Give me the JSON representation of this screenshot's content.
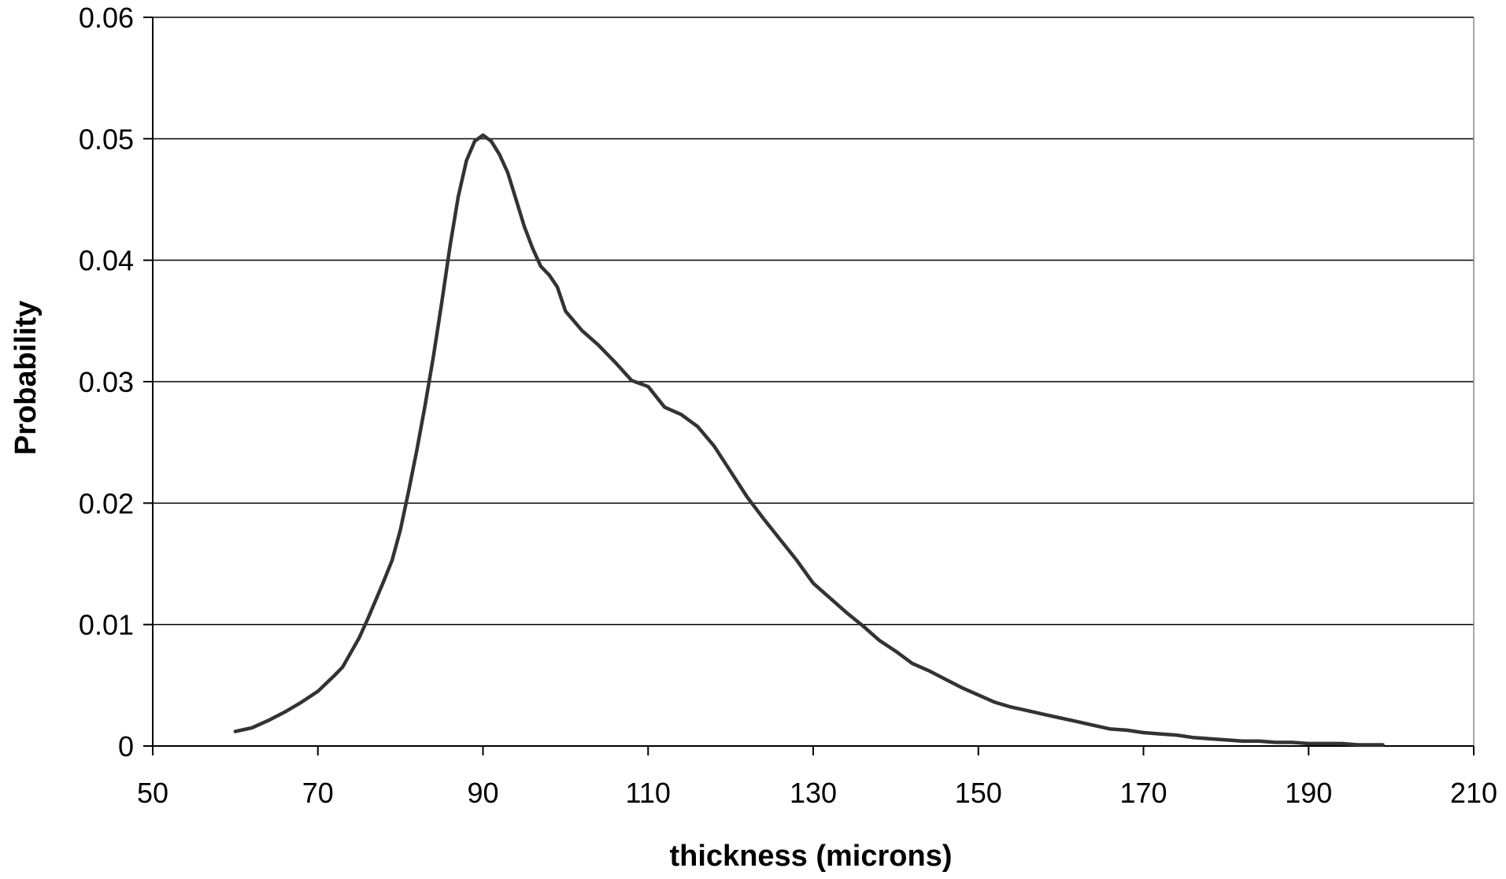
{
  "chart_data": {
    "type": "line",
    "title": "",
    "xlabel": "thickness (microns)",
    "ylabel": "Probability",
    "xlim": [
      50,
      210
    ],
    "ylim": [
      0,
      0.06
    ],
    "x_ticks": [
      50,
      70,
      90,
      110,
      130,
      150,
      170,
      190,
      210
    ],
    "y_ticks": [
      0,
      0.01,
      0.02,
      0.03,
      0.04,
      0.05,
      0.06
    ],
    "x_tick_labels": [
      "50",
      "70",
      "90",
      "110",
      "130",
      "150",
      "170",
      "190",
      "210"
    ],
    "y_tick_labels": [
      "0",
      "0.01",
      "0.02",
      "0.03",
      "0.04",
      "0.05",
      "0.06"
    ],
    "grid": "horizontal",
    "legend": "none",
    "line_color": "#333333",
    "series": [
      {
        "x": [
          60,
          62,
          64,
          66,
          68,
          70,
          72,
          73,
          74,
          75,
          76,
          77,
          78,
          79,
          80,
          81,
          82,
          83,
          84,
          85,
          86,
          87,
          88,
          89,
          90,
          91,
          92,
          93,
          94,
          95,
          96,
          97,
          98,
          99,
          100,
          102,
          104,
          106,
          108,
          110,
          112,
          114,
          116,
          118,
          120,
          122,
          124,
          126,
          128,
          130,
          132,
          134,
          136,
          138,
          140,
          142,
          144,
          146,
          148,
          150,
          152,
          154,
          156,
          158,
          160,
          162,
          164,
          166,
          168,
          170,
          172,
          174,
          176,
          178,
          180,
          182,
          184,
          186,
          188,
          190,
          192,
          194,
          196,
          198,
          199
        ],
        "y": [
          0.0012,
          0.0015,
          0.0021,
          0.0028,
          0.0036,
          0.0045,
          0.0058,
          0.0065,
          0.0077,
          0.0089,
          0.0104,
          0.012,
          0.0136,
          0.0153,
          0.0178,
          0.021,
          0.0244,
          0.0281,
          0.0321,
          0.0365,
          0.0411,
          0.0452,
          0.0482,
          0.0498,
          0.0503,
          0.0498,
          0.0487,
          0.0472,
          0.045,
          0.0428,
          0.041,
          0.0395,
          0.0388,
          0.0378,
          0.0358,
          0.0342,
          0.033,
          0.0316,
          0.0301,
          0.0296,
          0.0279,
          0.0273,
          0.0263,
          0.0247,
          0.0226,
          0.0205,
          0.0187,
          0.017,
          0.0153,
          0.0134,
          0.0122,
          0.011,
          0.0099,
          0.0087,
          0.0078,
          0.0068,
          0.0062,
          0.0055,
          0.0048,
          0.0042,
          0.0036,
          0.0032,
          0.0029,
          0.0026,
          0.0023,
          0.002,
          0.0017,
          0.0014,
          0.0013,
          0.0011,
          0.001,
          0.0009,
          0.0007,
          0.0006,
          0.0005,
          0.0004,
          0.0004,
          0.0003,
          0.0003,
          0.0002,
          0.0002,
          0.0002,
          0.0001,
          0.0001,
          0.0001
        ]
      }
    ]
  }
}
